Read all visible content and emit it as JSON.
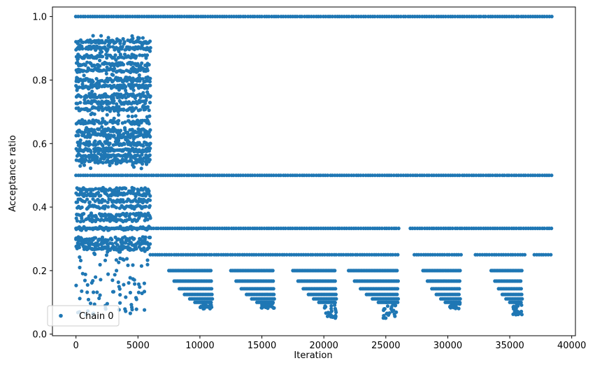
{
  "chart_data": {
    "type": "scatter",
    "title": "",
    "xlabel": "Iteration",
    "ylabel": "Acceptance ratio",
    "xlim": [
      -1900,
      40300
    ],
    "ylim": [
      -0.005,
      1.03
    ],
    "x_ticks": [
      0,
      5000,
      10000,
      15000,
      20000,
      25000,
      30000,
      35000,
      40000
    ],
    "x_tick_labels": [
      "0",
      "5000",
      "10000",
      "15000",
      "20000",
      "25000",
      "30000",
      "35000",
      "40000"
    ],
    "y_ticks": [
      0.0,
      0.2,
      0.4,
      0.6,
      0.8,
      1.0
    ],
    "y_tick_labels": [
      "0.0",
      "0.2",
      "0.4",
      "0.6",
      "0.8",
      "1.0"
    ],
    "grid": false,
    "legend": {
      "position": "lower-left",
      "entries": [
        "Chain 0"
      ]
    },
    "color": "#1f77b4",
    "series": [
      {
        "name": "Chain 0",
        "x_range": [
          0,
          38400
        ],
        "clusters": [
          {
            "x": [
              0,
              6000
            ],
            "y_range": [
              0.06,
              0.94
            ],
            "note": "dense band early iterations"
          },
          {
            "x": [
              0,
              38400
            ],
            "y": 1.0
          },
          {
            "x": [
              0,
              38400
            ],
            "y": 0.5
          },
          {
            "x": [
              0,
              38400
            ],
            "y": 0.333
          },
          {
            "x": [
              6000,
              38400
            ],
            "y": 0.25
          },
          {
            "x": [
              7500,
              11000
            ],
            "y_range": [
              0.08,
              0.2
            ]
          },
          {
            "x": [
              12500,
              16000
            ],
            "y_range": [
              0.08,
              0.2
            ]
          },
          {
            "x": [
              17500,
              21000
            ],
            "y_range": [
              0.045,
              0.2
            ]
          },
          {
            "x": [
              22000,
              26000
            ],
            "y_range": [
              0.05,
              0.2
            ]
          },
          {
            "x": [
              28000,
              31000
            ],
            "y_range": [
              0.08,
              0.2
            ]
          },
          {
            "x": [
              33500,
              36000
            ],
            "y_range": [
              0.06,
              0.2
            ]
          }
        ]
      }
    ]
  }
}
